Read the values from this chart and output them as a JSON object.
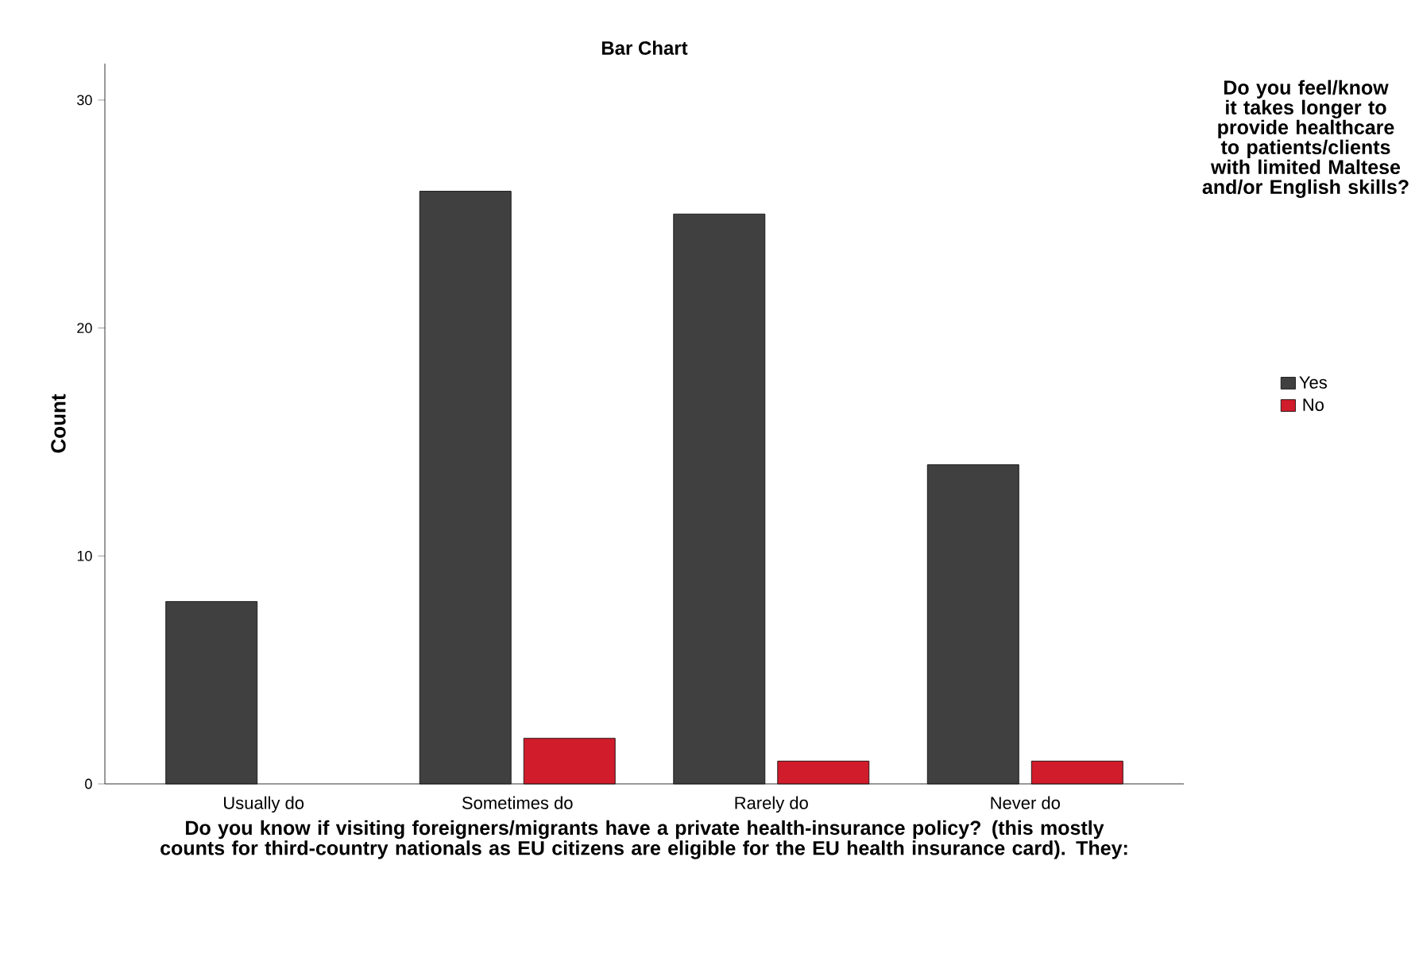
{
  "chart_data": {
    "type": "bar",
    "title": "Bar Chart",
    "xlabel": "Do you know if visiting foreigners/migrants have a private health-insurance policy? (this mostly counts for third-country nationals as EU citizens are eligible for the EU health insurance card). They:",
    "ylabel": "Count",
    "legend_title": "Do you feel/know it takes longer to provide healthcare to patients/clients with limited Maltese and/or English skills?",
    "categories": [
      "Usually do",
      "Sometimes do",
      "Rarely do",
      "Never do"
    ],
    "series": [
      {
        "name": "Yes",
        "color": "#404040",
        "values": [
          8,
          26,
          25,
          14
        ]
      },
      {
        "name": "No",
        "color": "#d01c2b",
        "values": [
          null,
          2,
          1,
          1
        ]
      }
    ],
    "ylim": [
      0,
      31.6
    ],
    "yticks": [
      0,
      10,
      20,
      30
    ],
    "grid": false,
    "legend": "right"
  }
}
